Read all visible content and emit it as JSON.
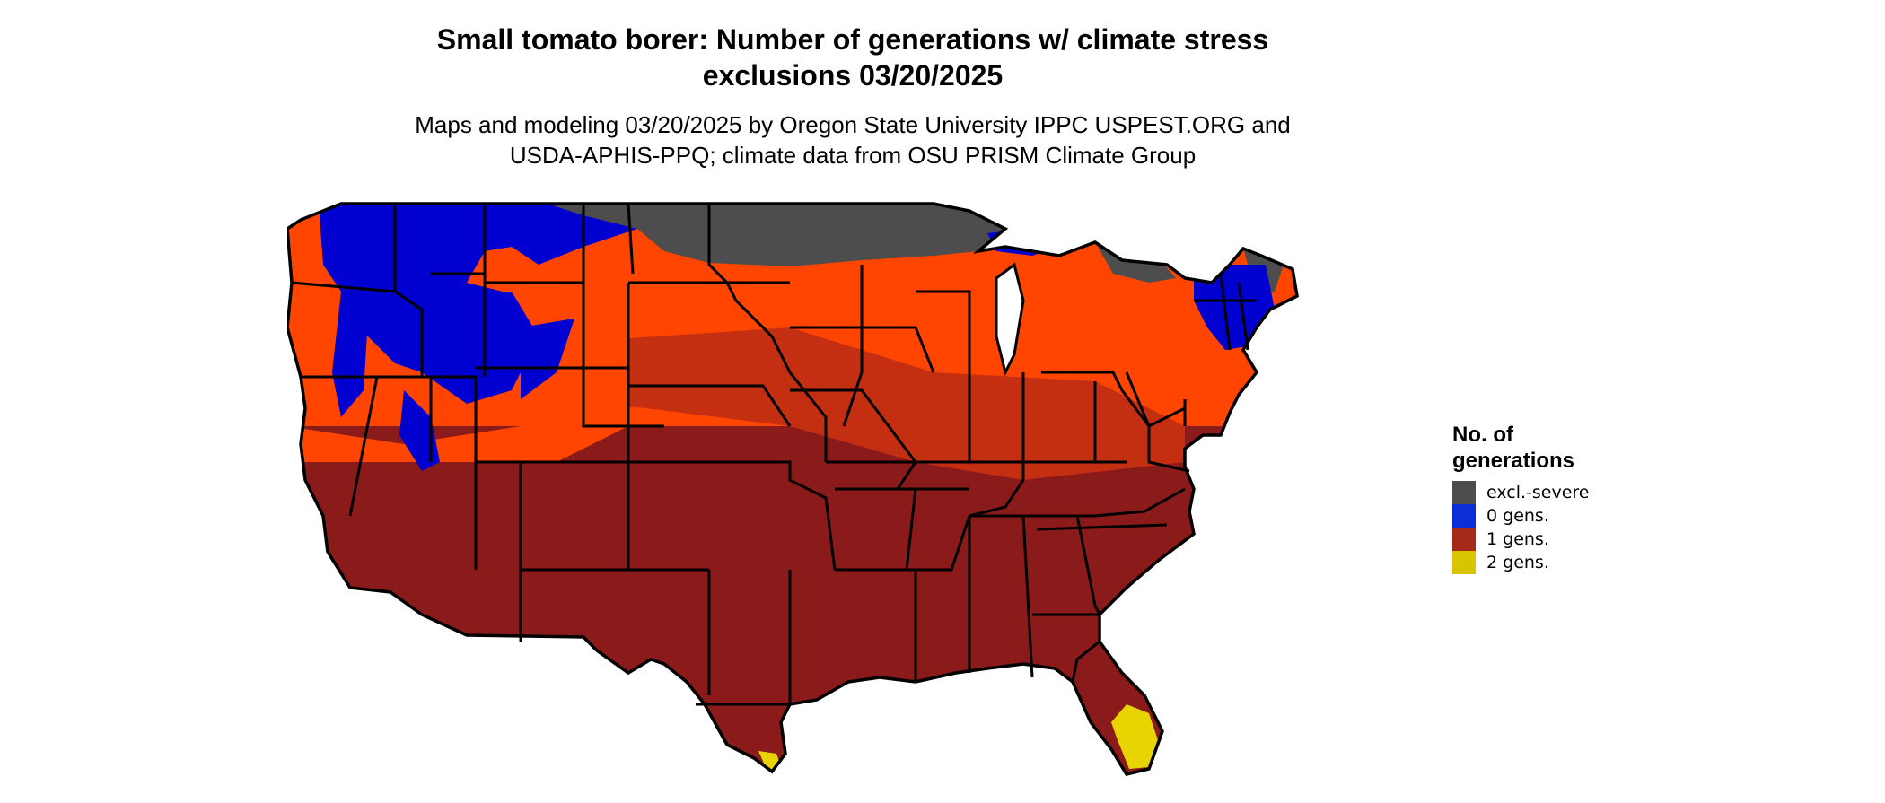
{
  "title_line1": "Small tomato borer: Number of generations w/ climate stress",
  "title_line2": "exclusions 03/20/2025",
  "subtitle_line1": "Maps and modeling 03/20/2025 by Oregon State University IPPC USPEST.ORG and",
  "subtitle_line2": "USDA-APHIS-PPQ; climate data from OSU PRISM Climate Group",
  "legend": {
    "title_line1": "No. of",
    "title_line2": "generations",
    "items": [
      {
        "label": "excl.-severe",
        "color": "#4d4d4d"
      },
      {
        "label": "0 gens.",
        "color": "#0a2fd8"
      },
      {
        "label": "1 gens.",
        "color": "#a52a1a"
      },
      {
        "label": "2 gens.",
        "color": "#d9c400"
      }
    ]
  },
  "map_colors": {
    "excl_severe": "#4d4d4d",
    "zero_gens": "#0000d0",
    "one_gen_light": "#ff4500",
    "one_gen_mid": "#c42f12",
    "one_gen_dark": "#8b1a1a",
    "two_gens": "#e8d400",
    "boundary": "#000000"
  }
}
